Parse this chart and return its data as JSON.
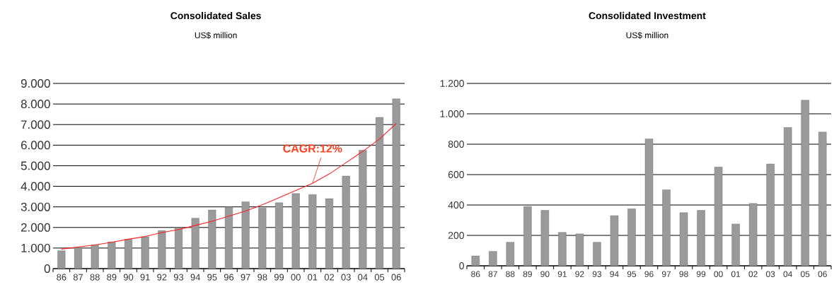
{
  "chart_data": [
    {
      "type": "bar",
      "title": "Consolidated Sales",
      "subtitle": "US$ million",
      "categories": [
        "86",
        "87",
        "88",
        "89",
        "90",
        "91",
        "92",
        "93",
        "94",
        "95",
        "96",
        "97",
        "98",
        "99",
        "00",
        "01",
        "02",
        "03",
        "04",
        "05",
        "06"
      ],
      "series": [
        {
          "color": "#9a9a9a",
          "values": [
            870,
            1020,
            1150,
            1300,
            1430,
            1550,
            1850,
            2000,
            2450,
            2850,
            3000,
            3250,
            2950,
            3200,
            3650,
            3600,
            3400,
            4500,
            5750,
            7350,
            8250
          ]
        },
        {
          "type": "line",
          "color": "#ff2020",
          "values": [
            950,
            1050,
            1150,
            1280,
            1430,
            1560,
            1750,
            1900,
            2100,
            2300,
            2550,
            2800,
            3100,
            3450,
            3800,
            4150,
            4600,
            5150,
            5700,
            6300,
            7050
          ]
        }
      ],
      "ylim": [
        0,
        9000
      ],
      "yticks": [
        0,
        {
          "value": 1000,
          "label": "1.000"
        },
        {
          "value": 2000,
          "label": "2.000"
        },
        {
          "value": 3000,
          "label": "3.000"
        },
        {
          "value": 4000,
          "label": "4.000"
        },
        {
          "value": 5000,
          "label": "5.000"
        },
        {
          "value": 6000,
          "label": "6.000"
        },
        {
          "value": 7000,
          "label": "7.000"
        },
        {
          "value": 8000,
          "label": "8.000"
        },
        {
          "value": 9000,
          "label": "9.000"
        }
      ],
      "grid": "y",
      "annotations": [
        {
          "text": "CAGR:12%",
          "x": "01",
          "y": 4150
        }
      ]
    },
    {
      "type": "bar",
      "title": "Consolidated Investment",
      "subtitle": "US$ million",
      "categories": [
        "86",
        "87",
        "88",
        "89",
        "90",
        "91",
        "92",
        "93",
        "94",
        "95",
        "96",
        "97",
        "98",
        "99",
        "00",
        "01",
        "02",
        "03",
        "04",
        "05",
        "06"
      ],
      "series": [
        {
          "color": "#9a9a9a",
          "values": [
            65,
            95,
            155,
            390,
            365,
            220,
            210,
            155,
            330,
            375,
            835,
            500,
            350,
            365,
            650,
            275,
            410,
            670,
            910,
            1090,
            880
          ]
        }
      ],
      "ylim": [
        0,
        1200
      ],
      "yticks": [
        0,
        200,
        400,
        600,
        800,
        {
          "value": 1000,
          "label": "1.000"
        },
        {
          "value": 1200,
          "label": "1.200"
        }
      ],
      "grid": "y"
    }
  ]
}
